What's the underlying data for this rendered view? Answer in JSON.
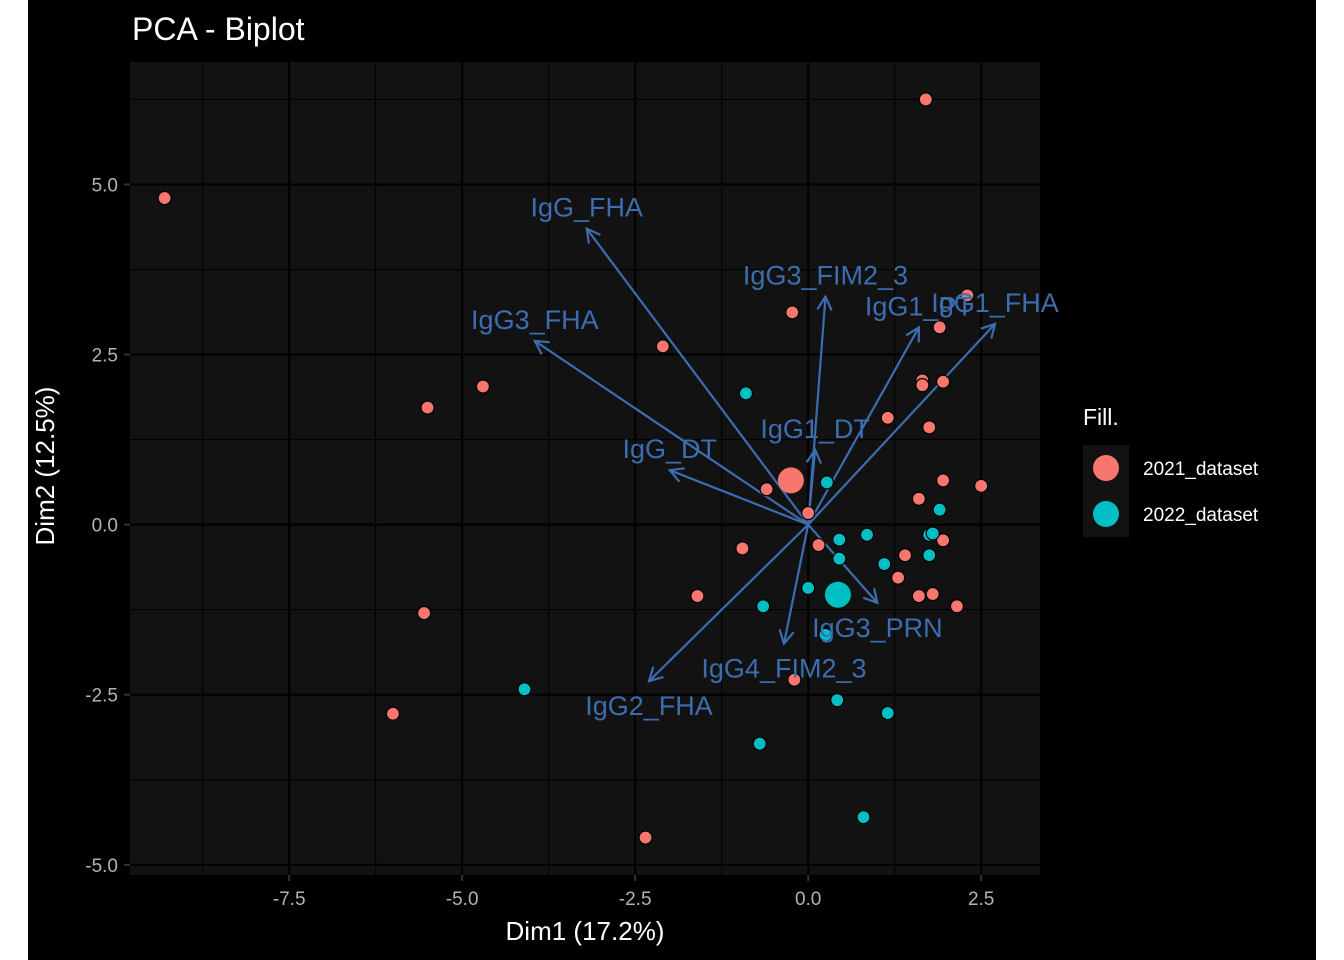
{
  "chart_data": {
    "type": "scatter",
    "title": "PCA - Biplot",
    "xlabel": "Dim1 (17.2%)",
    "ylabel": "Dim2 (12.5%)",
    "xlim": [
      -9.8,
      3.35
    ],
    "ylim": [
      -5.15,
      6.8
    ],
    "x_ticks": [
      -7.5,
      -5.0,
      -2.5,
      0.0,
      2.5
    ],
    "x_tick_labels": [
      "-7.5",
      "-5.0",
      "-2.5",
      "0.0",
      "2.5"
    ],
    "y_ticks": [
      -5.0,
      -2.5,
      0.0,
      2.5,
      5.0
    ],
    "y_tick_labels": [
      "-5.0",
      "-2.5",
      "0.0",
      "2.5",
      "5.0"
    ],
    "grid": true,
    "panel_background": "#121212",
    "legend": {
      "title": "Fill.",
      "position": "right",
      "entries": [
        {
          "label": "2021_dataset",
          "color": "#f8766d"
        },
        {
          "label": "2022_dataset",
          "color": "#00bfc4"
        }
      ]
    },
    "series": [
      {
        "name": "2021_dataset",
        "color": "#f8766d",
        "points": [
          [
            -9.3,
            4.8
          ],
          [
            -6.0,
            -2.78
          ],
          [
            -5.55,
            -1.3
          ],
          [
            -5.5,
            1.72
          ],
          [
            -4.7,
            2.03
          ],
          [
            -2.1,
            2.62
          ],
          [
            -2.35,
            -4.6
          ],
          [
            -1.6,
            -1.05
          ],
          [
            -0.95,
            -0.35
          ],
          [
            -0.6,
            0.52
          ],
          [
            -0.2,
            -2.28
          ],
          [
            -0.23,
            3.12
          ],
          [
            0.0,
            0.17
          ],
          [
            0.15,
            -0.3
          ],
          [
            1.15,
            1.57
          ],
          [
            1.65,
            2.12
          ],
          [
            1.65,
            2.05
          ],
          [
            1.95,
            2.1
          ],
          [
            1.9,
            2.9
          ],
          [
            2.3,
            3.37
          ],
          [
            1.7,
            6.25
          ],
          [
            1.75,
            1.43
          ],
          [
            1.6,
            0.38
          ],
          [
            1.95,
            0.65
          ],
          [
            2.5,
            0.57
          ],
          [
            1.95,
            -0.23
          ],
          [
            1.4,
            -0.45
          ],
          [
            1.3,
            -0.78
          ],
          [
            1.6,
            -1.05
          ],
          [
            1.8,
            -1.02
          ],
          [
            2.15,
            -1.2
          ]
        ]
      },
      {
        "name": "2022_dataset",
        "color": "#00bfc4",
        "points": [
          [
            -4.1,
            -2.42
          ],
          [
            -0.9,
            1.93
          ],
          [
            -0.7,
            -3.22
          ],
          [
            -0.65,
            -1.2
          ],
          [
            0.0,
            -0.93
          ],
          [
            0.27,
            0.62
          ],
          [
            0.25,
            -1.62
          ],
          [
            0.45,
            -0.22
          ],
          [
            0.45,
            -0.5
          ],
          [
            0.42,
            -2.58
          ],
          [
            0.85,
            -0.15
          ],
          [
            0.8,
            -4.3
          ],
          [
            1.1,
            -0.58
          ],
          [
            1.15,
            -2.77
          ],
          [
            1.75,
            -0.15
          ],
          [
            1.8,
            -0.13
          ],
          [
            1.75,
            -0.45
          ],
          [
            1.9,
            0.22
          ]
        ]
      }
    ],
    "centroids": [
      {
        "name": "2021_dataset",
        "x": -0.25,
        "y": 0.65,
        "color": "#f8766d"
      },
      {
        "name": "2022_dataset",
        "x": 0.43,
        "y": -1.03,
        "color": "#00bfc4"
      }
    ],
    "variables": [
      {
        "name": "IgG_FHA",
        "x": -3.2,
        "y": 4.35
      },
      {
        "name": "IgG3_FIM2_3",
        "x": 0.25,
        "y": 3.35
      },
      {
        "name": "IgG1_FHA",
        "x": 2.7,
        "y": 2.95
      },
      {
        "name": "IgG1_PT",
        "x": 1.6,
        "y": 2.9
      },
      {
        "name": "IgG3_FHA",
        "x": -3.95,
        "y": 2.7
      },
      {
        "name": "IgG1_DT",
        "x": 0.1,
        "y": 1.1
      },
      {
        "name": "IgG_DT",
        "x": -2.0,
        "y": 0.8
      },
      {
        "name": "IgG3_PRN",
        "x": 1.0,
        "y": -1.15
      },
      {
        "name": "IgG4_FIM2_3",
        "x": -0.35,
        "y": -1.75
      },
      {
        "name": "IgG2_FHA",
        "x": -2.3,
        "y": -2.3
      }
    ],
    "variable_color": "#3c6db0"
  }
}
